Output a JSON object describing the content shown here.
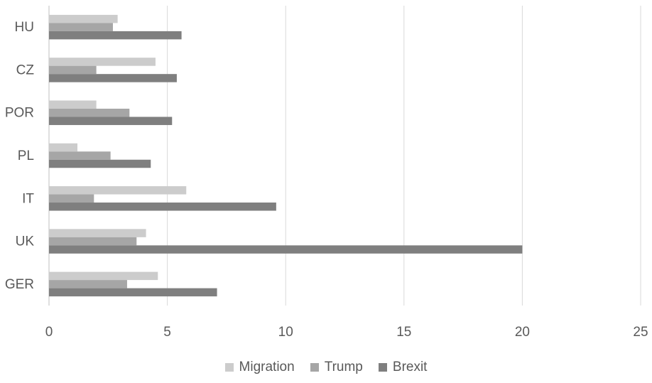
{
  "colors": {
    "Migration": "#cccccc",
    "Trump": "#a6a6a6",
    "Brexit": "#7f7f7f",
    "grid": "#d9d9d9",
    "axis": "#bfbfbf",
    "text": "#595959"
  },
  "chart_data": {
    "type": "bar",
    "orientation": "horizontal",
    "categories": [
      "HU",
      "CZ",
      "POR",
      "PL",
      "IT",
      "UK",
      "GER"
    ],
    "series": [
      {
        "name": "Migration",
        "values": [
          2.9,
          4.5,
          2.0,
          1.2,
          5.8,
          4.1,
          4.6
        ]
      },
      {
        "name": "Trump",
        "values": [
          2.7,
          2.0,
          3.4,
          2.6,
          1.9,
          3.7,
          3.3
        ]
      },
      {
        "name": "Brexit",
        "values": [
          5.6,
          5.4,
          5.2,
          4.3,
          9.6,
          20.0,
          7.1
        ]
      }
    ],
    "xlim": [
      0,
      25
    ],
    "xticks": [
      "0",
      "5",
      "10",
      "15",
      "20",
      "25"
    ],
    "grid": "vertical",
    "legend": "bottom",
    "title": "",
    "xlabel": "",
    "ylabel": ""
  }
}
